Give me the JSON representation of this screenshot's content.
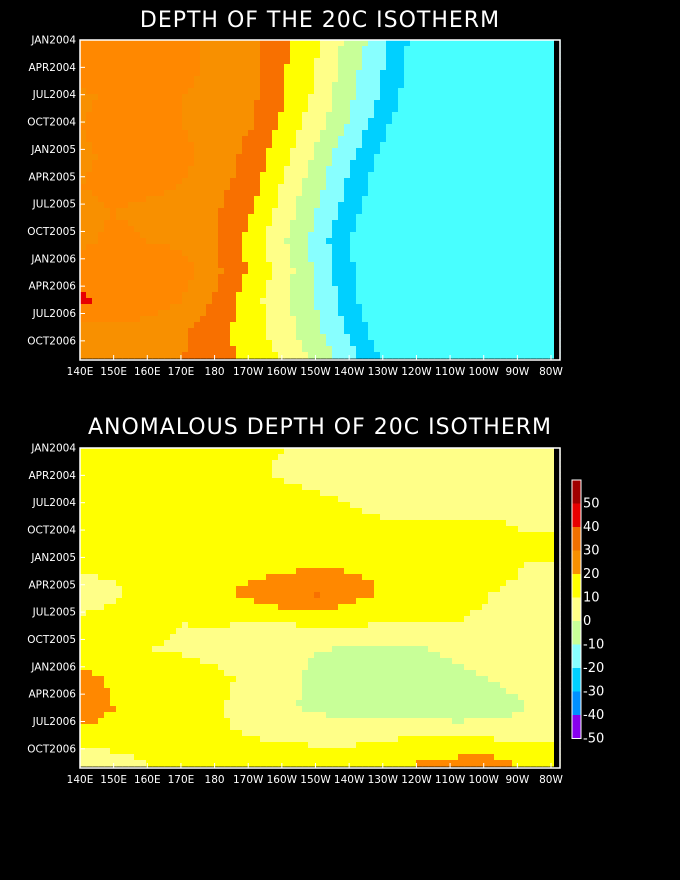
{
  "chart_data": [
    {
      "type": "heatmap",
      "title": "DEPTH OF THE 20C ISOTHERM",
      "x_tick_labels": [
        "140E",
        "150E",
        "160E",
        "170E",
        "180",
        "170W",
        "160W",
        "150W",
        "140W",
        "130W",
        "120W",
        "110W",
        "100W",
        "90W",
        "80W"
      ],
      "y_tick_labels": [
        "JAN2004",
        "APR2004",
        "JUL2004",
        "OCT2004",
        "JAN2005",
        "APR2005",
        "JUL2005",
        "OCT2005",
        "JAN2006",
        "APR2006",
        "JUL2006",
        "OCT2006"
      ],
      "xlim": [
        "140E",
        "80W"
      ],
      "ylim": [
        "JAN2004",
        "DEC2006"
      ],
      "contour_levels": [
        100,
        110,
        120,
        130,
        140,
        150,
        160,
        170,
        180,
        190,
        200
      ],
      "x": [
        140,
        150,
        160,
        170,
        180,
        190,
        200,
        210,
        220,
        230,
        240,
        250,
        260,
        270,
        280
      ],
      "z": [
        [
          170,
          175,
          175,
          172,
          168,
          162,
          152,
          140,
          125,
          110,
          92,
          78,
          62,
          48,
          35
        ],
        [
          172,
          178,
          176,
          172,
          168,
          162,
          150,
          138,
          122,
          108,
          90,
          75,
          60,
          46,
          35
        ],
        [
          168,
          172,
          172,
          170,
          168,
          162,
          150,
          136,
          120,
          105,
          88,
          72,
          58,
          45,
          35
        ],
        [
          170,
          174,
          172,
          170,
          168,
          160,
          146,
          132,
          116,
          100,
          85,
          70,
          56,
          44,
          35
        ],
        [
          168,
          172,
          174,
          172,
          166,
          156,
          142,
          126,
          110,
          95,
          80,
          66,
          54,
          42,
          35
        ],
        [
          170,
          172,
          172,
          170,
          164,
          154,
          138,
          122,
          106,
          90,
          76,
          64,
          52,
          42,
          35
        ],
        [
          168,
          170,
          168,
          166,
          160,
          150,
          134,
          118,
          102,
          88,
          74,
          62,
          50,
          40,
          35
        ],
        [
          168,
          172,
          170,
          168,
          160,
          146,
          130,
          114,
          98,
          84,
          70,
          58,
          46,
          38,
          35
        ],
        [
          174,
          178,
          178,
          174,
          162,
          148,
          134,
          116,
          100,
          85,
          70,
          56,
          44,
          36,
          35
        ],
        [
          182,
          178,
          176,
          170,
          158,
          144,
          132,
          118,
          102,
          86,
          72,
          58,
          44,
          36,
          35
        ],
        [
          168,
          168,
          166,
          162,
          154,
          144,
          134,
          120,
          106,
          90,
          76,
          62,
          50,
          40,
          35
        ],
        [
          162,
          164,
          162,
          160,
          154,
          146,
          138,
          126,
          112,
          96,
          80,
          66,
          54,
          44,
          35
        ]
      ]
    },
    {
      "type": "heatmap",
      "title": "ANOMALOUS DEPTH OF 20C ISOTHERM",
      "x_tick_labels": [
        "140E",
        "150E",
        "160E",
        "170E",
        "180",
        "170W",
        "160W",
        "150W",
        "140W",
        "130W",
        "120W",
        "110W",
        "100W",
        "90W",
        "80W"
      ],
      "y_tick_labels": [
        "JAN2004",
        "APR2004",
        "JUL2004",
        "OCT2004",
        "JAN2005",
        "APR2005",
        "JUL2005",
        "OCT2005",
        "JAN2006",
        "APR2006",
        "JUL2006",
        "OCT2006"
      ],
      "xlim": [
        "140E",
        "80W"
      ],
      "ylim": [
        "JAN2004",
        "DEC2006"
      ],
      "contour_levels": [
        -50,
        -40,
        -30,
        -20,
        -10,
        0,
        10,
        20,
        30,
        40,
        50
      ],
      "x": [
        140,
        150,
        160,
        170,
        180,
        190,
        200,
        210,
        220,
        230,
        240,
        250,
        260,
        270,
        280
      ],
      "z": [
        [
          2,
          3,
          2,
          1,
          2,
          1,
          0,
          -2,
          -3,
          -4,
          -6,
          -7,
          -5,
          -2,
          0
        ],
        [
          1,
          2,
          2,
          3,
          2,
          1,
          -1,
          -3,
          -4,
          -6,
          -8,
          -8,
          -6,
          -3,
          0
        ],
        [
          2,
          3,
          4,
          7,
          9,
          8,
          5,
          2,
          0,
          -2,
          -4,
          -4,
          -3,
          -2,
          0
        ],
        [
          3,
          5,
          4,
          4,
          4,
          6,
          5,
          4,
          3,
          2,
          4,
          6,
          3,
          0,
          0
        ],
        [
          1,
          2,
          3,
          3,
          2,
          4,
          6,
          7,
          8,
          8,
          6,
          4,
          2,
          0,
          0
        ],
        [
          -3,
          -1,
          2,
          4,
          8,
          14,
          20,
          22,
          14,
          8,
          4,
          2,
          0,
          -1,
          0
        ],
        [
          1,
          2,
          2,
          0,
          1,
          0,
          1,
          2,
          2,
          1,
          1,
          0,
          -1,
          -1,
          0
        ],
        [
          2,
          1,
          0,
          -1,
          -3,
          -6,
          -9,
          -10,
          -12,
          -12,
          -11,
          -8,
          -5,
          -3,
          0
        ],
        [
          14,
          8,
          6,
          5,
          2,
          -2,
          -8,
          -12,
          -16,
          -16,
          -14,
          -12,
          -10,
          -6,
          0
        ],
        [
          18,
          10,
          6,
          3,
          1,
          -4,
          -9,
          -12,
          -14,
          -15,
          -17,
          -19,
          -16,
          -10,
          0
        ],
        [
          5,
          4,
          3,
          2,
          1,
          0,
          -1,
          -2,
          -2,
          -1,
          0,
          1,
          -1,
          -2,
          0
        ],
        [
          -8,
          -4,
          0,
          2,
          3,
          4,
          5,
          4,
          5,
          8,
          12,
          14,
          16,
          8,
          0
        ]
      ]
    }
  ],
  "colorbar": {
    "labels": [
      "50",
      "40",
      "30",
      "20",
      "10",
      "0",
      "-10",
      "-20",
      "-30",
      "-40",
      "-50"
    ],
    "colors": [
      "#a00000",
      "#e80000",
      "#f07000",
      "#f89000",
      "#ffff00",
      "#ffff88",
      "#c8ff98",
      "#88ffff",
      "#00d0ff",
      "#0090ff",
      "#8800ee"
    ]
  },
  "fill_colors_top": [
    "#48ffff",
    "#00d0ff",
    "#88ffff",
    "#c8ff98",
    "#ffff88",
    "#ffff00",
    "#f87000",
    "#f89000",
    "#ff8800",
    "#e80000",
    "#8a0000"
  ],
  "fill_colors_bottom": [
    "#8800ee",
    "#0090ff",
    "#00d0ff",
    "#88ffff",
    "#c8ff98",
    "#ffff88",
    "#ffff00",
    "#ff8800",
    "#f87000",
    "#e80000",
    "#a00000"
  ]
}
